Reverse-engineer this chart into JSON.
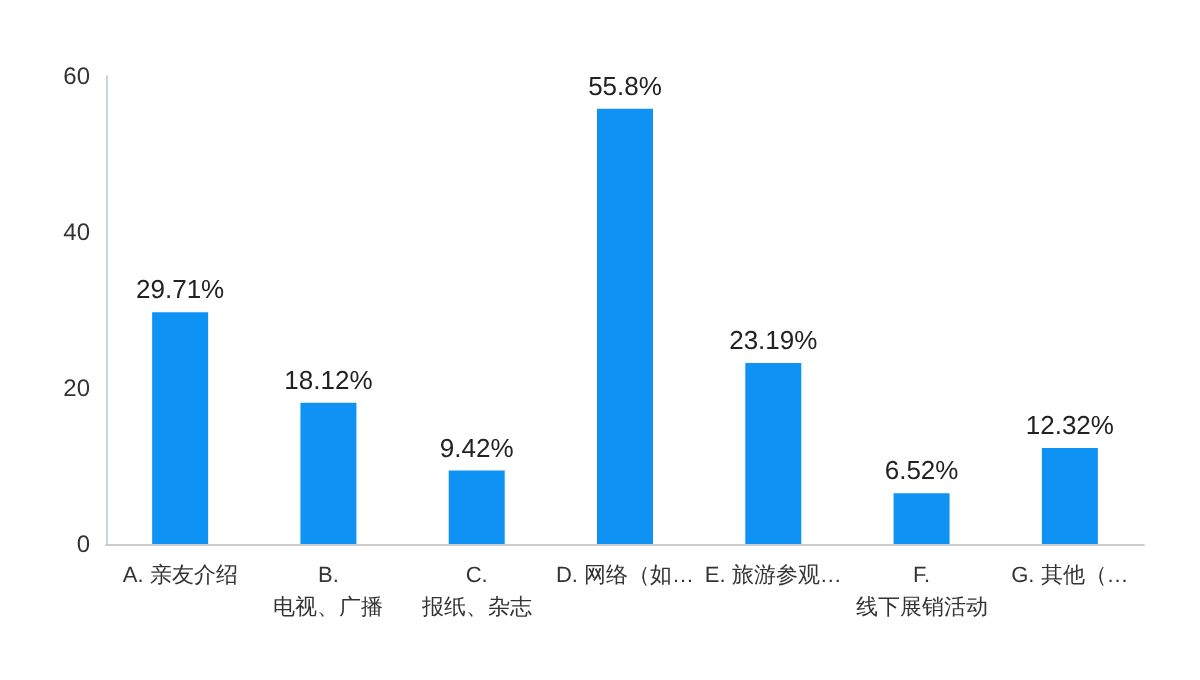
{
  "chart_data": {
    "type": "bar",
    "categories": [
      "A. 亲友介绍",
      "B.\n电视、广播",
      "C.\n报纸、杂志",
      "D. 网络（如…",
      "E. 旅游参观…",
      "F.\n线下展销活动",
      "G. 其他（…"
    ],
    "values": [
      29.71,
      18.12,
      9.42,
      55.8,
      23.19,
      6.52,
      12.32
    ],
    "value_labels": [
      "29.71%",
      "18.12%",
      "9.42%",
      "55.8%",
      "23.19%",
      "6.52%",
      "12.32%"
    ],
    "color": "#0e93f5",
    "ylim": [
      0,
      60
    ],
    "yticks": [
      0,
      20,
      40,
      60
    ],
    "grid": false
  }
}
